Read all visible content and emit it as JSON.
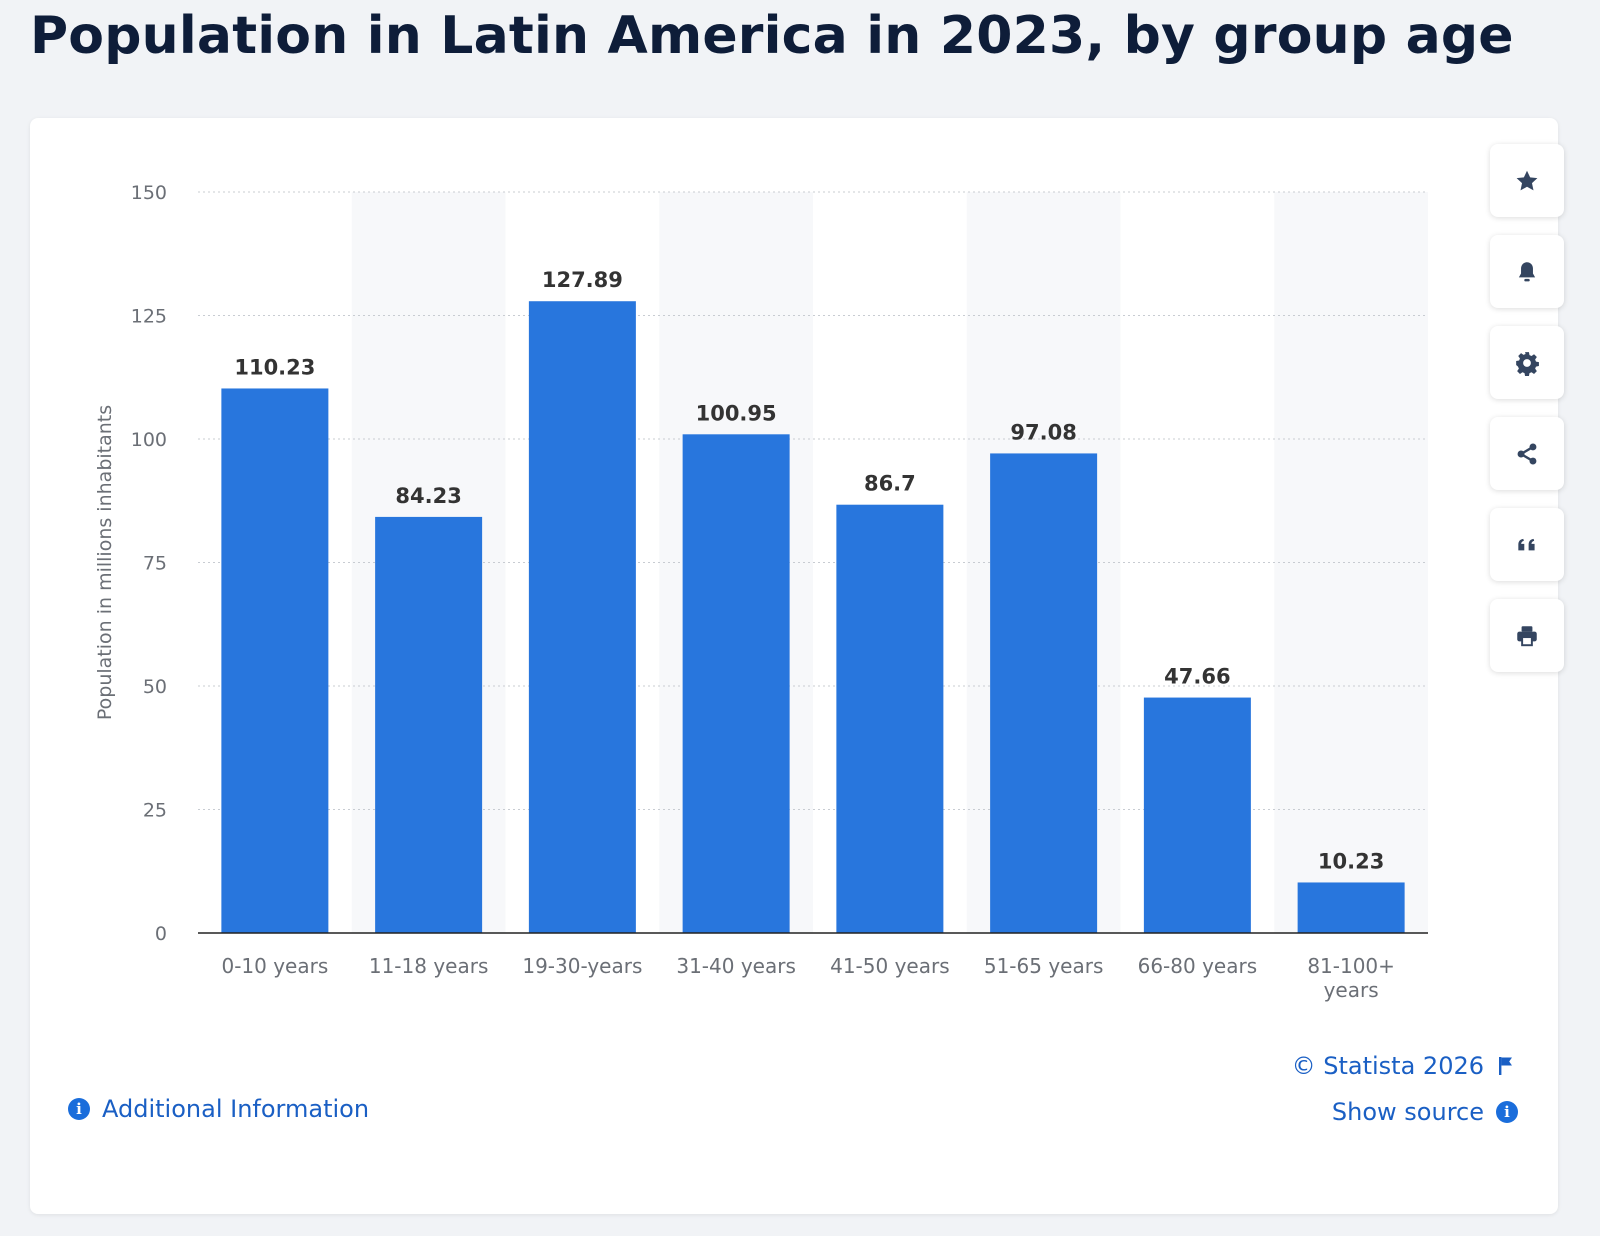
{
  "page": {
    "title": "Population in Latin America in 2023, by group age"
  },
  "colors": {
    "bar": "#2876dd",
    "title": "#0e1d39",
    "link": "#1a5fc4",
    "stripe": "#f7f8fa",
    "grid": "#c8ccd2",
    "axis_text": "#6b6f76",
    "value_text": "#333333"
  },
  "chart_data": {
    "type": "bar",
    "title": "Population in Latin America in 2023, by group age",
    "xlabel": "",
    "ylabel": "Population in millions inhabitants",
    "categories": [
      "0-10 years",
      "11-18 years",
      "19-30-years",
      "31-40 years",
      "41-50 years",
      "51-65 years",
      "66-80 years",
      "81-100+ years"
    ],
    "category_labels": [
      [
        "0-10 years"
      ],
      [
        "11-18 years"
      ],
      [
        "19-30-years"
      ],
      [
        "31-40 years"
      ],
      [
        "41-50 years"
      ],
      [
        "51-65 years"
      ],
      [
        "66-80 years"
      ],
      [
        "81-100+",
        "years"
      ]
    ],
    "values": [
      110.23,
      84.23,
      127.89,
      100.95,
      86.7,
      97.08,
      47.66,
      10.23
    ],
    "value_labels": [
      "110.23",
      "84.23",
      "127.89",
      "100.95",
      "86.7",
      "97.08",
      "47.66",
      "10.23"
    ],
    "ylim": [
      0,
      150
    ],
    "yticks": [
      0,
      25,
      50,
      75,
      100,
      125,
      150
    ],
    "grid": true,
    "legend": "none"
  },
  "toolbar": {
    "buttons": [
      {
        "icon": "star-icon",
        "label": "Favorite"
      },
      {
        "icon": "bell-icon",
        "label": "Notification"
      },
      {
        "icon": "gear-icon",
        "label": "Settings"
      },
      {
        "icon": "share-icon",
        "label": "Share"
      },
      {
        "icon": "quote-icon",
        "label": "Cite"
      },
      {
        "icon": "print-icon",
        "label": "Print"
      }
    ]
  },
  "footer": {
    "additional_info": "Additional Information",
    "copyright": "© Statista 2026",
    "show_source": "Show source"
  }
}
